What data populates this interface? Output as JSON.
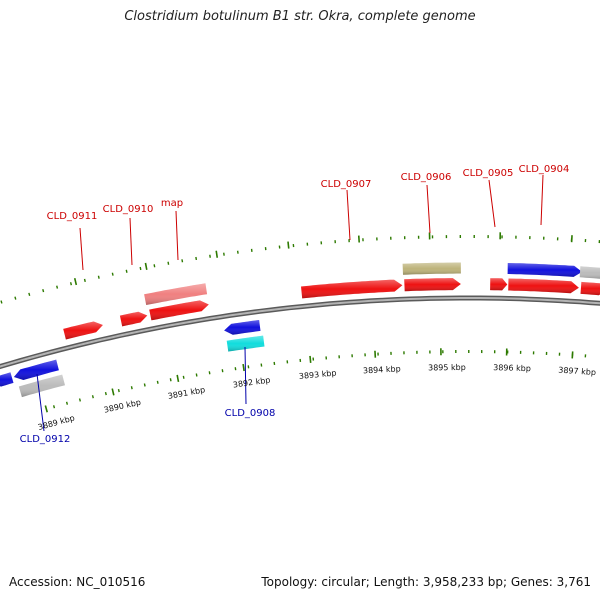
{
  "title": "Clostridium botulinum B1 str. Okra, complete genome",
  "footer": {
    "accession": "Accession: NC_010516",
    "summary": "Topology: circular; Length: 3,958,233 bp; Genes: 3,761"
  },
  "colors": {
    "label_red": "#cc0000",
    "label_blue": "#0000aa",
    "tick_green": "#2d7a00",
    "backbone": "#888888"
  },
  "scale_labels": [
    "3889 kbp",
    "3890 kbp",
    "3891 kbp",
    "3892 kbp",
    "3893 kbp",
    "3894 kbp",
    "3895 kbp",
    "3896 kbp",
    "3897 kbp"
  ],
  "gene_labels": [
    {
      "text": "CLD_0911",
      "strand": "plus"
    },
    {
      "text": "CLD_0910",
      "strand": "plus"
    },
    {
      "text": "map",
      "strand": "plus"
    },
    {
      "text": "CLD_0907",
      "strand": "plus"
    },
    {
      "text": "CLD_0906",
      "strand": "plus"
    },
    {
      "text": "CLD_0905",
      "strand": "plus"
    },
    {
      "text": "CLD_0904",
      "strand": "plus"
    },
    {
      "text": "CLD_0912",
      "strand": "minus"
    },
    {
      "text": "CLD_0908",
      "strand": "minus"
    }
  ],
  "features": [
    {
      "name": "gene-CLD_0911",
      "color": "#ee1111",
      "direction": "right"
    },
    {
      "name": "gene-CLD_0910",
      "color": "#ee1111",
      "direction": "right"
    },
    {
      "name": "gene-map",
      "color": "#ee1111",
      "direction": "right"
    },
    {
      "name": "cds-map",
      "color": "#f08080",
      "direction": "none"
    },
    {
      "name": "gene-CLD_0907",
      "color": "#ee1111",
      "direction": "right"
    },
    {
      "name": "gene-CLD_0906",
      "color": "#ee1111",
      "direction": "right"
    },
    {
      "name": "cds-CLD_0906",
      "color": "#bdb37a",
      "direction": "none"
    },
    {
      "name": "gene-CLD_0905",
      "color": "#ee1111",
      "direction": "right"
    },
    {
      "name": "gene-CLD_0904",
      "color": "#ee1111",
      "direction": "right"
    },
    {
      "name": "cds-CLD_0904",
      "color": "#1111dd",
      "direction": "right"
    },
    {
      "name": "feature-right-gray",
      "color": "#bbbbbb",
      "direction": "none"
    },
    {
      "name": "gene-CLD_0912",
      "color": "#1111dd",
      "direction": "left"
    },
    {
      "name": "cds-CLD_0912",
      "color": "#bbbbbb",
      "direction": "none"
    },
    {
      "name": "gene-left-edge",
      "color": "#1111dd",
      "direction": "left"
    },
    {
      "name": "gene-CLD_0908",
      "color": "#1111dd",
      "direction": "left"
    },
    {
      "name": "cds-CLD_0908",
      "color": "#11dddd",
      "direction": "none"
    }
  ]
}
